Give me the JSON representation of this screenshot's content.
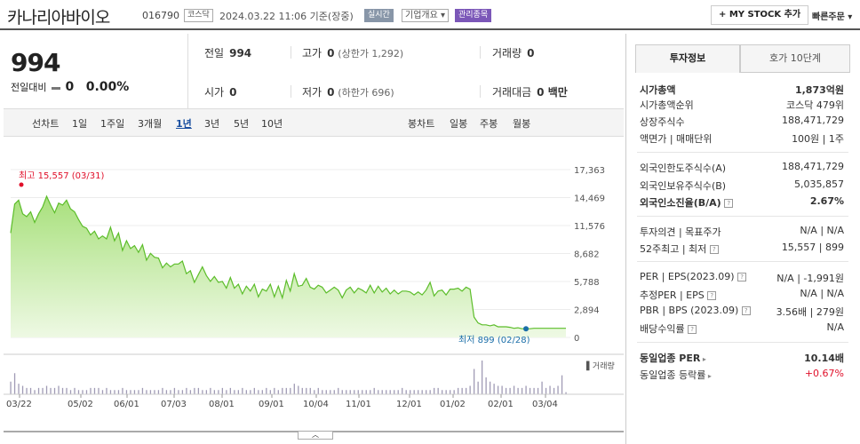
{
  "header": {
    "name": "카나리아바이오",
    "code": "016790",
    "market_tag": "코스닥",
    "date": "2024.03.22 11:06 기준(장중)",
    "realtime_badge": "실시간",
    "company_info": "기업개요 ▾",
    "managed_badge": "관리종목",
    "mystock_button": "+ MY STOCK 추가",
    "quick_order": "빠른주문 ▾",
    "colors": {
      "realtime": "#8896a8",
      "managed": "#7b57b8"
    }
  },
  "price": {
    "current": "994",
    "change_label": "전일대비",
    "change_value": "0",
    "change_pct": "0.00%"
  },
  "stats": {
    "prev_label": "전일",
    "prev": "994",
    "high_label": "고가",
    "high": "0",
    "high_limit": "(상한가 1,292)",
    "volume_label": "거래량",
    "volume": "0",
    "open_label": "시가",
    "open": "0",
    "low_label": "저가",
    "low": "0",
    "low_limit": "(하한가 696)",
    "amount_label": "거래대금",
    "amount": "0 백만"
  },
  "line_tabs": {
    "label": "선차트",
    "items": [
      "1일",
      "1주일",
      "3개월",
      "1년",
      "3년",
      "5년",
      "10년"
    ],
    "selected": "1년"
  },
  "candle_tabs": {
    "label": "봉차트",
    "items": [
      "일봉",
      "주봉",
      "월봉"
    ]
  },
  "chart_data": {
    "type": "area",
    "y_ticks": [
      "17,363",
      "14,469",
      "11,576",
      "8,682",
      "5,788",
      "2,894",
      "0"
    ],
    "ylim": [
      0,
      17363
    ],
    "x_ticks": [
      "03/22",
      "05/02",
      "06/01",
      "07/03",
      "08/01",
      "09/01",
      "10/04",
      "11/01",
      "12/01",
      "01/02",
      "02/01",
      "03/04"
    ],
    "high_label": "최고 15,557 (03/31)",
    "low_label": "최저 899 (02/28)",
    "volume_label": "거래량",
    "values": [
      10800,
      13800,
      14200,
      12800,
      12500,
      13000,
      11900,
      12800,
      13500,
      14600,
      13700,
      12900,
      13900,
      13700,
      14200,
      13300,
      13000,
      12200,
      11500,
      11300,
      10600,
      11000,
      10200,
      10500,
      10200,
      11400,
      10000,
      10800,
      9000,
      10000,
      9200,
      9500,
      8800,
      9600,
      8000,
      8700,
      8300,
      8200,
      7200,
      7700,
      7300,
      7600,
      7600,
      7900,
      6600,
      6900,
      5700,
      6500,
      7300,
      6400,
      5800,
      6300,
      5700,
      5800,
      5100,
      6200,
      5100,
      5500,
      4500,
      5300,
      4800,
      5500,
      4200,
      5000,
      4800,
      5500,
      4200,
      5300,
      4100,
      5900,
      4800,
      6600,
      5300,
      5400,
      6100,
      5200,
      5000,
      5400,
      5200,
      4600,
      4900,
      5200,
      4900,
      4100,
      4900,
      5200,
      4600,
      5100,
      4900,
      4600,
      5400,
      4600,
      5300,
      4700,
      5100,
      4500,
      4900,
      4500,
      4800,
      4800,
      4700,
      4400,
      4700,
      4400,
      4900,
      5700,
      4300,
      4800,
      4900,
      4400,
      5000,
      5000,
      5100,
      4800,
      5200,
      5000,
      2100,
      1500,
      1300,
      1300,
      1200,
      1300,
      1100,
      1100,
      1100,
      1050,
      950,
      1000,
      900,
      899,
      900,
      950,
      950,
      950,
      950,
      950,
      950,
      950,
      950,
      950
    ],
    "volumes": [
      6,
      10,
      5,
      4,
      3,
      3,
      2,
      3,
      3,
      4,
      3,
      3,
      4,
      3,
      3,
      2,
      3,
      2,
      2,
      2,
      3,
      3,
      3,
      2,
      3,
      2,
      2,
      2,
      3,
      2,
      2,
      2,
      2,
      3,
      2,
      2,
      2,
      2,
      3,
      2,
      2,
      3,
      2,
      2,
      3,
      2,
      3,
      3,
      2,
      2,
      3,
      2,
      2,
      3,
      2,
      3,
      2,
      2,
      3,
      2,
      2,
      3,
      2,
      2,
      3,
      2,
      3,
      2,
      3,
      3,
      3,
      5,
      4,
      3,
      3,
      3,
      2,
      3,
      2,
      2,
      2,
      2,
      3,
      2,
      2,
      2,
      2,
      2,
      2,
      2,
      2,
      3,
      2,
      2,
      2,
      2,
      2,
      2,
      3,
      2,
      2,
      2,
      2,
      2,
      2,
      2,
      3,
      3,
      2,
      2,
      2,
      2,
      3,
      3,
      3,
      4,
      12,
      6,
      16,
      8,
      6,
      5,
      4,
      4,
      3,
      3,
      4,
      3,
      3,
      4,
      3,
      3,
      3,
      6,
      3,
      4,
      3,
      4,
      9,
      1
    ],
    "area_color": "#a8e07c",
    "line_color": "#5cbd2a",
    "volume_color": "#a09bb5"
  },
  "right_panel": {
    "tab_invest": "투자정보",
    "tab_quote": "호가 10단계",
    "market_cap_label": "시가총액",
    "market_cap": "1,873억원",
    "market_cap_rank_label": "시가총액순위",
    "market_cap_rank": "코스닥 479위",
    "shares_label": "상장주식수",
    "shares": "188,471,729",
    "face_label": "액면가 | 매매단위",
    "face": "100원 | 1주",
    "foreign_limit_label": "외국인한도주식수(A)",
    "foreign_limit": "188,471,729",
    "foreign_hold_label": "외국인보유주식수(B)",
    "foreign_hold": "5,035,857",
    "foreign_ratio_label": "외국인소진율(B/A)",
    "foreign_ratio": "2.67%",
    "opinion_label": "투자의견 | 목표주가",
    "opinion": "N/A | N/A",
    "week52_label": "52주최고 | 최저",
    "week52": "15,557 | 899",
    "per_label": "PER | EPS(2023.09)",
    "per": "N/A | -1,991원",
    "est_per_label": "추정PER | EPS",
    "est_per": "N/A | N/A",
    "pbr_label": "PBR | BPS (2023.09)",
    "pbr": "3.56배 | 279원",
    "dividend_label": "배당수익률",
    "dividend": "N/A",
    "ind_per_label": "동일업종 PER",
    "ind_per": "10.14배",
    "ind_rate_label": "동일업종 등락률",
    "ind_rate": "+0.67%"
  }
}
